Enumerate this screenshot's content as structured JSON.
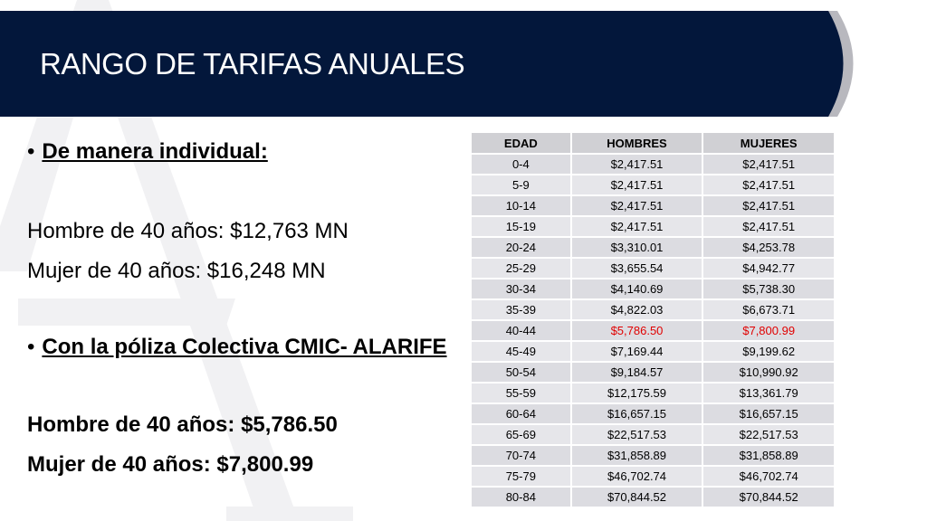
{
  "slide": {
    "title": "RANGO DE TARIFAS ANUALES",
    "colors": {
      "header_bg": "#03173b",
      "header_accent": "#b8b8be",
      "highlight": "#e00000"
    }
  },
  "content": {
    "bullet1": "De manera individual:",
    "line1": "Hombre de 40 años: $12,763 MN",
    "line2": "Mujer de 40 años: $16,248 MN",
    "bullet2": "Con la póliza Colectiva CMIC- ALARIFE",
    "line3": "Hombre de 40 años: $5,786.50",
    "line4": "Mujer de 40 años: $7,800.99"
  },
  "table": {
    "headers": [
      "EDAD",
      "HOMBRES",
      "MUJERES"
    ],
    "highlight_row": "40-44",
    "rows": [
      [
        "0-4",
        "$2,417.51",
        "$2,417.51"
      ],
      [
        "5-9",
        "$2,417.51",
        "$2,417.51"
      ],
      [
        "10-14",
        "$2,417.51",
        "$2,417.51"
      ],
      [
        "15-19",
        "$2,417.51",
        "$2,417.51"
      ],
      [
        "20-24",
        "$3,310.01",
        "$4,253.78"
      ],
      [
        "25-29",
        "$3,655.54",
        "$4,942.77"
      ],
      [
        "30-34",
        "$4,140.69",
        "$5,738.30"
      ],
      [
        "35-39",
        "$4,822.03",
        "$6,673.71"
      ],
      [
        "40-44",
        "$5,786.50",
        "$7,800.99"
      ],
      [
        "45-49",
        "$7,169.44",
        "$9,199.62"
      ],
      [
        "50-54",
        "$9,184.57",
        "$10,990.92"
      ],
      [
        "55-59",
        "$12,175.59",
        "$13,361.79"
      ],
      [
        "60-64",
        "$16,657.15",
        "$16,657.15"
      ],
      [
        "65-69",
        "$22,517.53",
        "$22,517.53"
      ],
      [
        "70-74",
        "$31,858.89",
        "$31,858.89"
      ],
      [
        "75-79",
        "$46,702.74",
        "$46,702.74"
      ],
      [
        "80-84",
        "$70,844.52",
        "$70,844.52"
      ]
    ]
  }
}
